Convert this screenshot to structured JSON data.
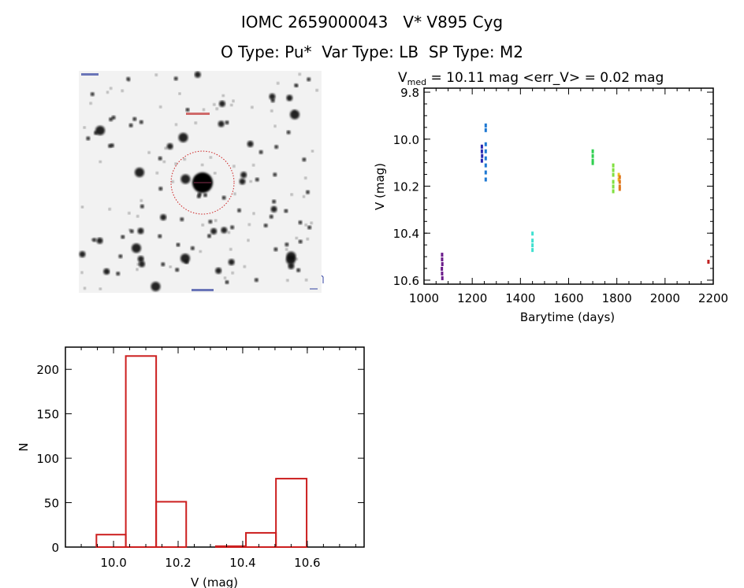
{
  "header": {
    "title": "IOMC 2659000043   V* V895 Cyg",
    "subtitle": "O Type: Pu*  Var Type: LB  SP Type: M2"
  },
  "finding_chart": {
    "type": "image",
    "description_colors": {
      "background": "#f2f2f2",
      "stars": "#111111",
      "aperture": "#cc2020"
    }
  },
  "chart_data": [
    {
      "type": "scatter",
      "title_parts": {
        "prefix": "V",
        "sub": "med",
        "rest": " = 10.11 mag <err_V> = 0.02 mag"
      },
      "xlabel": "Barytime (days)",
      "ylabel": "V (mag)",
      "xlim": [
        1000,
        2200
      ],
      "ylim": [
        10.617,
        9.783
      ],
      "y_inverted": true,
      "xticks": [
        "1000",
        "1200",
        "1400",
        "1600",
        "1800",
        "2000",
        "2200"
      ],
      "yticks": [
        "9.8",
        "10.0",
        "10.2",
        "10.4",
        "10.6"
      ],
      "grid": false,
      "series": [
        {
          "color": "#6a1b8a",
          "points": [
            [
              1075,
              10.49
            ],
            [
              1075,
              10.51
            ],
            [
              1076,
              10.53
            ],
            [
              1074,
              10.55
            ],
            [
              1075,
              10.57
            ],
            [
              1076,
              10.59
            ]
          ]
        },
        {
          "color": "#2828b0",
          "points": [
            [
              1240,
              10.03
            ],
            [
              1240,
              10.05
            ],
            [
              1241,
              10.07
            ],
            [
              1240,
              10.09
            ]
          ]
        },
        {
          "color": "#1e78d2",
          "points": [
            [
              1256,
              9.94
            ],
            [
              1256,
              9.96
            ],
            [
              1256,
              10.02
            ],
            [
              1256,
              10.05
            ],
            [
              1256,
              10.08
            ],
            [
              1256,
              10.11
            ],
            [
              1256,
              10.14
            ],
            [
              1256,
              10.17
            ]
          ]
        },
        {
          "color": "#40e0d0",
          "points": [
            [
              1450,
              10.4
            ],
            [
              1450,
              10.43
            ],
            [
              1450,
              10.45
            ],
            [
              1450,
              10.47
            ]
          ]
        },
        {
          "color": "#30d050",
          "points": [
            [
              1700,
              10.05
            ],
            [
              1700,
              10.07
            ],
            [
              1700,
              10.09
            ],
            [
              1700,
              10.1
            ]
          ]
        },
        {
          "color": "#80e040",
          "points": [
            [
              1785,
              10.11
            ],
            [
              1785,
              10.13
            ],
            [
              1785,
              10.15
            ],
            [
              1785,
              10.18
            ],
            [
              1785,
              10.2
            ],
            [
              1785,
              10.22
            ]
          ]
        },
        {
          "color": "#f0c020",
          "points": [
            [
              1808,
              10.15
            ],
            [
              1808,
              10.17
            ]
          ]
        },
        {
          "color": "#e07820",
          "points": [
            [
              1812,
              10.16
            ],
            [
              1812,
              10.18
            ],
            [
              1812,
              10.2
            ],
            [
              1812,
              10.21
            ]
          ]
        },
        {
          "color": "#c02020",
          "points": [
            [
              2180,
              10.52
            ]
          ]
        }
      ]
    },
    {
      "type": "bar",
      "subtype": "histogram",
      "xlabel": "V (mag)",
      "ylabel": "N",
      "xlim": [
        9.851,
        10.776
      ],
      "ylim": [
        0,
        225
      ],
      "xticks": [
        "10.0",
        "10.2",
        "10.4",
        "10.6"
      ],
      "yticks": [
        "0",
        "50",
        "100",
        "150",
        "200"
      ],
      "grid": false,
      "color": "#cc1f1f",
      "bin_edges": [
        9.947,
        10.038,
        10.132,
        10.225,
        10.317,
        10.41,
        10.503,
        10.598
      ],
      "values": [
        14,
        215,
        51,
        0,
        1,
        16,
        77
      ]
    }
  ]
}
